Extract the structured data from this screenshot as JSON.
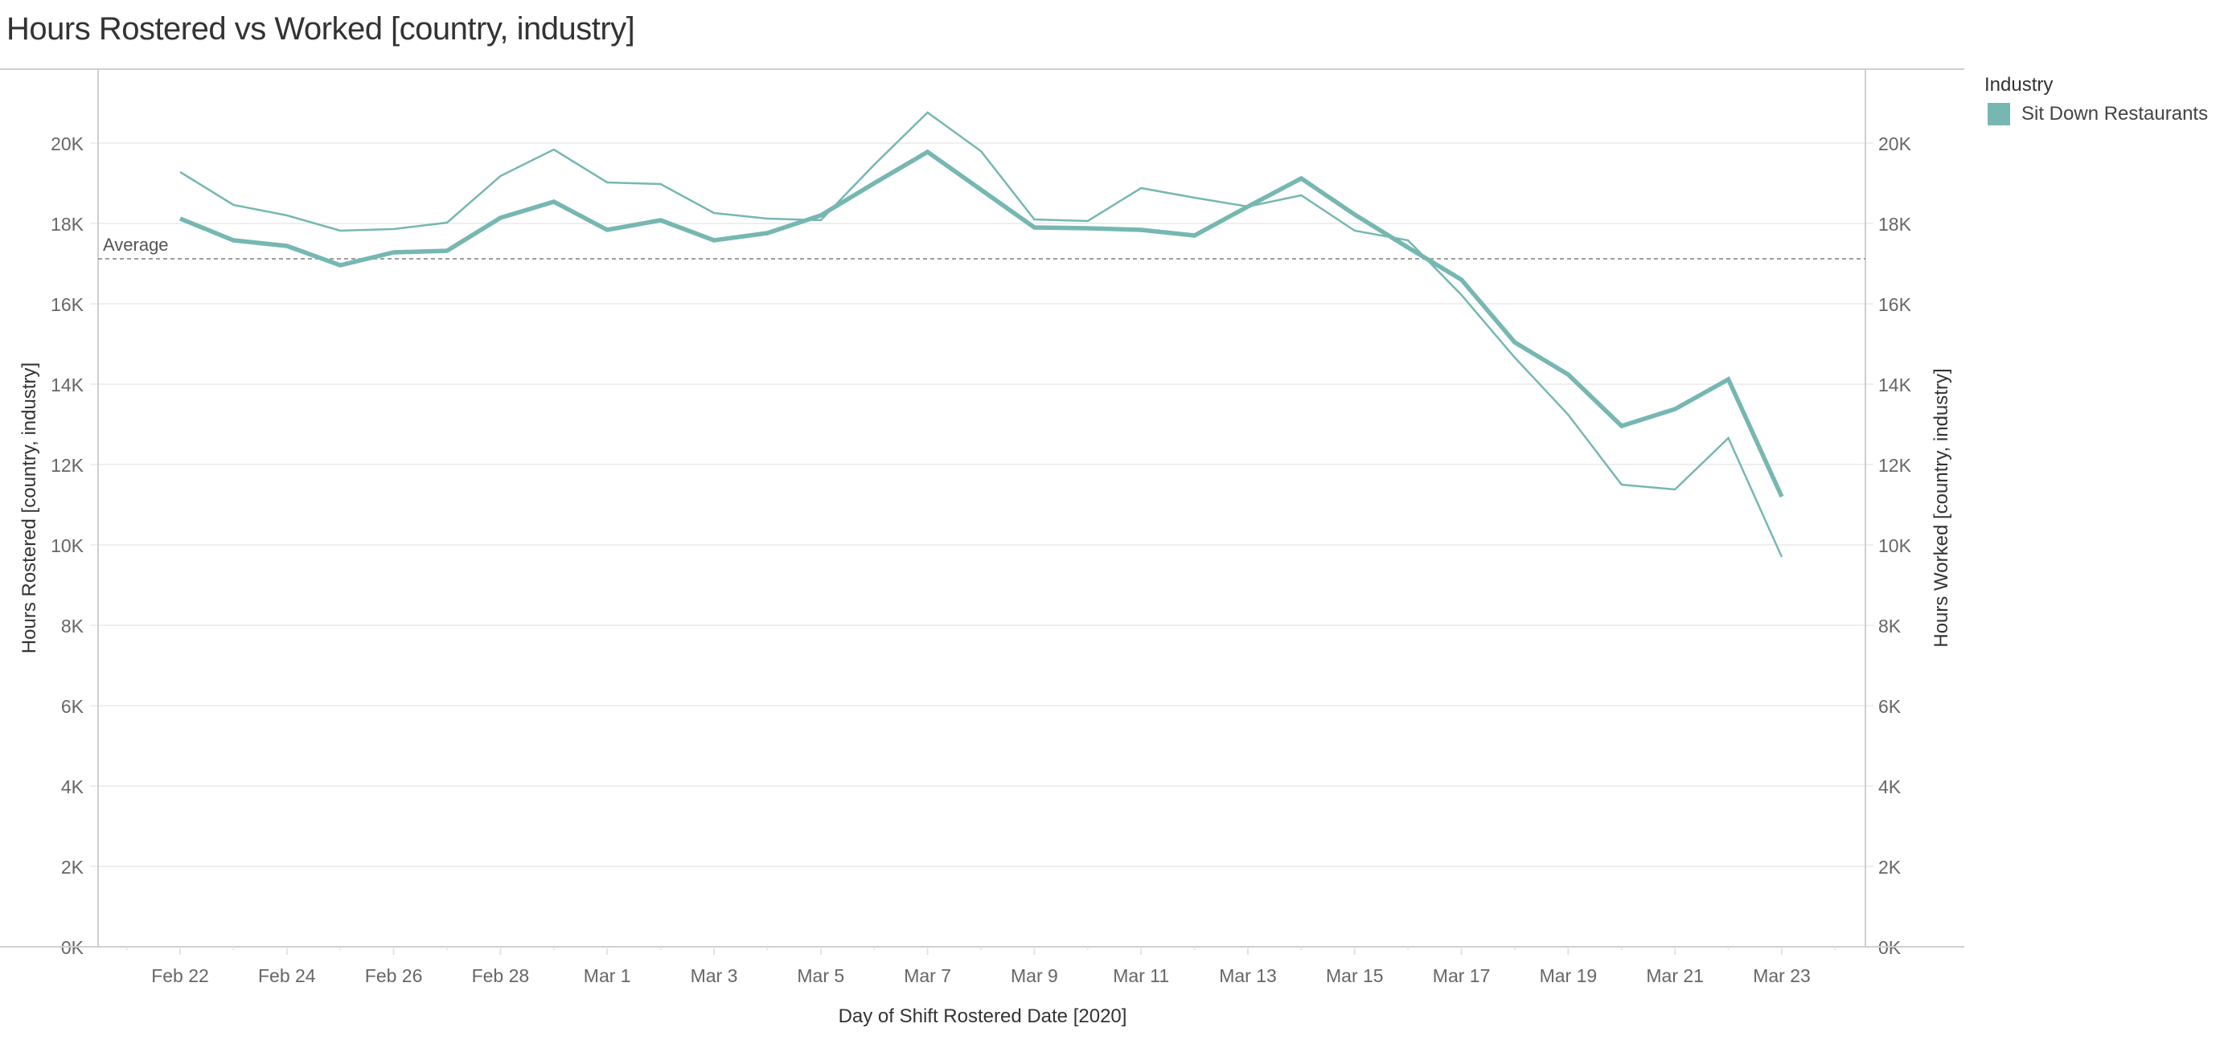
{
  "title": "Hours Rostered vs Worked [country, industry]",
  "legend": {
    "title": "Industry",
    "items": [
      {
        "label": "Sit Down Restaurants",
        "color": "#76b7b2"
      }
    ]
  },
  "reference_line": {
    "label": "Average",
    "value": 17120
  },
  "axes": {
    "x_title": "Day of Shift Rostered Date [2020]",
    "y_left_title": "Hours Rostered [country, industry]",
    "y_right_title": "Hours Worked [country, industry]",
    "y_ticks": [
      "0K",
      "2K",
      "4K",
      "6K",
      "8K",
      "10K",
      "12K",
      "14K",
      "16K",
      "18K",
      "20K"
    ]
  },
  "chart_data": {
    "type": "line",
    "title": "Hours Rostered vs Worked [country, industry]",
    "xlabel": "Day of Shift Rostered Date [2020]",
    "ylabel": "Hours Rostered [country, industry]",
    "ylabel_right": "Hours Worked [country, industry]",
    "ylim": [
      0,
      21800
    ],
    "y_ticks": [
      0,
      2000,
      4000,
      6000,
      8000,
      10000,
      12000,
      14000,
      16000,
      18000,
      20000
    ],
    "x_tick_labels": [
      "Feb 22",
      "Feb 24",
      "Feb 26",
      "Feb 28",
      "Mar 1",
      "Mar 3",
      "Mar 5",
      "Mar 7",
      "Mar 9",
      "Mar 11",
      "Mar 13",
      "Mar 15",
      "Mar 17",
      "Mar 19",
      "Mar 21",
      "Mar 23"
    ],
    "grid": true,
    "legend_position": "right",
    "x": [
      "Feb 22",
      "Feb 23",
      "Feb 24",
      "Feb 25",
      "Feb 26",
      "Feb 27",
      "Feb 28",
      "Feb 29",
      "Mar 1",
      "Mar 2",
      "Mar 3",
      "Mar 4",
      "Mar 5",
      "Mar 6",
      "Mar 7",
      "Mar 8",
      "Mar 9",
      "Mar 10",
      "Mar 11",
      "Mar 12",
      "Mar 13",
      "Mar 14",
      "Mar 15",
      "Mar 16",
      "Mar 17",
      "Mar 18",
      "Mar 19",
      "Mar 20",
      "Mar 21",
      "Mar 22",
      "Mar 23"
    ],
    "series": [
      {
        "name": "Hours Rostered (Sit Down Restaurants)",
        "axis": "left",
        "line": "thin",
        "values": [
          19280,
          18460,
          18200,
          17820,
          17860,
          18020,
          19180,
          19840,
          19020,
          18980,
          18260,
          18120,
          18080,
          19460,
          20760,
          19800,
          18100,
          18060,
          18880,
          18640,
          18420,
          18700,
          17820,
          17580,
          16220,
          14660,
          13240,
          11500,
          11380,
          12660,
          9700
        ]
      },
      {
        "name": "Hours Worked (Sit Down Restaurants)",
        "axis": "right",
        "line": "thick",
        "values": [
          18120,
          17580,
          17440,
          16960,
          17280,
          17320,
          18140,
          18540,
          17840,
          18080,
          17580,
          17760,
          18200,
          19000,
          19780,
          18840,
          17900,
          17880,
          17840,
          17700,
          18420,
          19120,
          18220,
          17400,
          16600,
          15040,
          14240,
          12960,
          13380,
          14120,
          11200
        ]
      }
    ],
    "annotations": [
      {
        "type": "reference_line",
        "label": "Average",
        "value": 17120
      }
    ]
  }
}
